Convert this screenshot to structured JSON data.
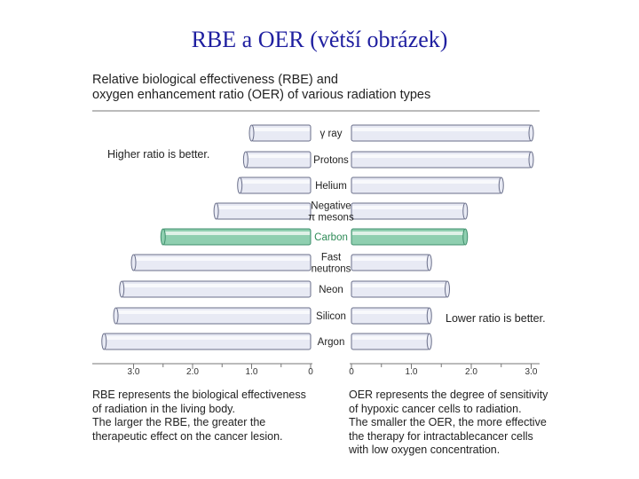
{
  "slide_title": "RBE a OER (větší obrázek)",
  "colors": {
    "title": "#1f1fa0",
    "bar_fill": "#e8eaf4",
    "bar_stroke": "#6a6f8a",
    "highlight_fill": "#8fcfb0",
    "highlight_stroke": "#3f8f6c",
    "highlight_label": "#2e8b57"
  },
  "chart_data": {
    "type": "bar",
    "title_lines": [
      "Relative biological effectiveness (RBE) and",
      "oxygen enhancement ratio (OER) of various radiation types"
    ],
    "categories": [
      {
        "label_lines": [
          "γ  ray"
        ],
        "highlight": false
      },
      {
        "label_lines": [
          "Protons"
        ],
        "highlight": false
      },
      {
        "label_lines": [
          "Helium"
        ],
        "highlight": false
      },
      {
        "label_lines": [
          "Negative",
          "π mesons"
        ],
        "highlight": false
      },
      {
        "label_lines": [
          "Carbon"
        ],
        "highlight": true
      },
      {
        "label_lines": [
          "Fast",
          "neutrons"
        ],
        "highlight": false
      },
      {
        "label_lines": [
          "Neon"
        ],
        "highlight": false
      },
      {
        "label_lines": [
          "Silicon"
        ],
        "highlight": false
      },
      {
        "label_lines": [
          "Argon"
        ],
        "highlight": false
      }
    ],
    "series": [
      {
        "name": "RBE",
        "values": [
          1.0,
          1.1,
          1.2,
          1.6,
          2.5,
          3.0,
          3.2,
          3.3,
          3.5
        ]
      },
      {
        "name": "OER",
        "values": [
          3.0,
          3.0,
          2.5,
          1.9,
          1.9,
          1.3,
          1.6,
          1.3,
          1.3
        ]
      }
    ],
    "left_axis": {
      "ticks": [
        "3.0",
        "2.0",
        "1.0",
        "0"
      ],
      "range": [
        0,
        3.5
      ]
    },
    "right_axis": {
      "ticks": [
        "0",
        "1.0",
        "2.0",
        "3.0"
      ],
      "range": [
        0,
        3.1
      ]
    },
    "annotations": {
      "left": "Higher ratio is better.",
      "right": "Lower ratio is better."
    }
  },
  "descriptions": {
    "rbe": [
      "RBE represents the biological effectiveness",
      "of radiation in the living body.",
      "The larger the RBE, the greater the",
      "therapeutic effect on the cancer lesion."
    ],
    "oer": [
      "OER represents the degree of sensitivity",
      "of hypoxic cancer cells to radiation.",
      "The smaller the OER, the more effective",
      "the therapy for intractablecancer cells",
      "with low oxygen concentration."
    ]
  }
}
